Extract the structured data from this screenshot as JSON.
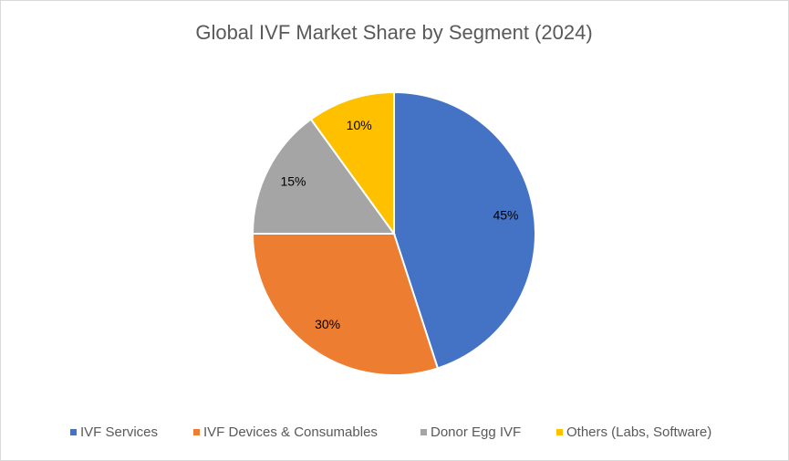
{
  "chart_data": {
    "type": "pie",
    "title": "Global IVF Market Share by Segment (2024)",
    "categories": [
      "IVF Services",
      "IVF Devices & Consumables",
      "Donor Egg IVF",
      "Others (Labs, Software)"
    ],
    "values": [
      45,
      30,
      15,
      10
    ],
    "value_labels": [
      "45%",
      "30%",
      "15%",
      "10%"
    ],
    "colors": [
      "#4472c4",
      "#ed7d31",
      "#a5a5a5",
      "#ffc000"
    ],
    "legend": "bottom"
  }
}
